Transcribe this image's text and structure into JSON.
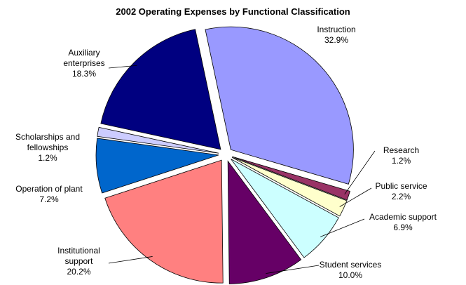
{
  "chart_data": {
    "type": "pie",
    "title": "2002 Operating Expenses by Functional Classification",
    "categories": [
      "Instruction",
      "Research",
      "Public service",
      "Academic support",
      "Student services",
      "Institutional support",
      "Operation of plant",
      "Scholarships and fellowships",
      "Auxiliary enterprises"
    ],
    "values": [
      32.9,
      1.2,
      2.2,
      6.9,
      10.0,
      20.2,
      7.2,
      1.2,
      18.3
    ],
    "value_labels": [
      "32.9%",
      "1.2%",
      "2.2%",
      "6.9%",
      "10.0%",
      "20.2%",
      "7.2%",
      "1.2%",
      "18.3%"
    ],
    "colors": [
      "#9999ff",
      "#993366",
      "#ffffcc",
      "#ccffff",
      "#660066",
      "#ff8080",
      "#0066cc",
      "#ccccff",
      "#000080"
    ]
  }
}
